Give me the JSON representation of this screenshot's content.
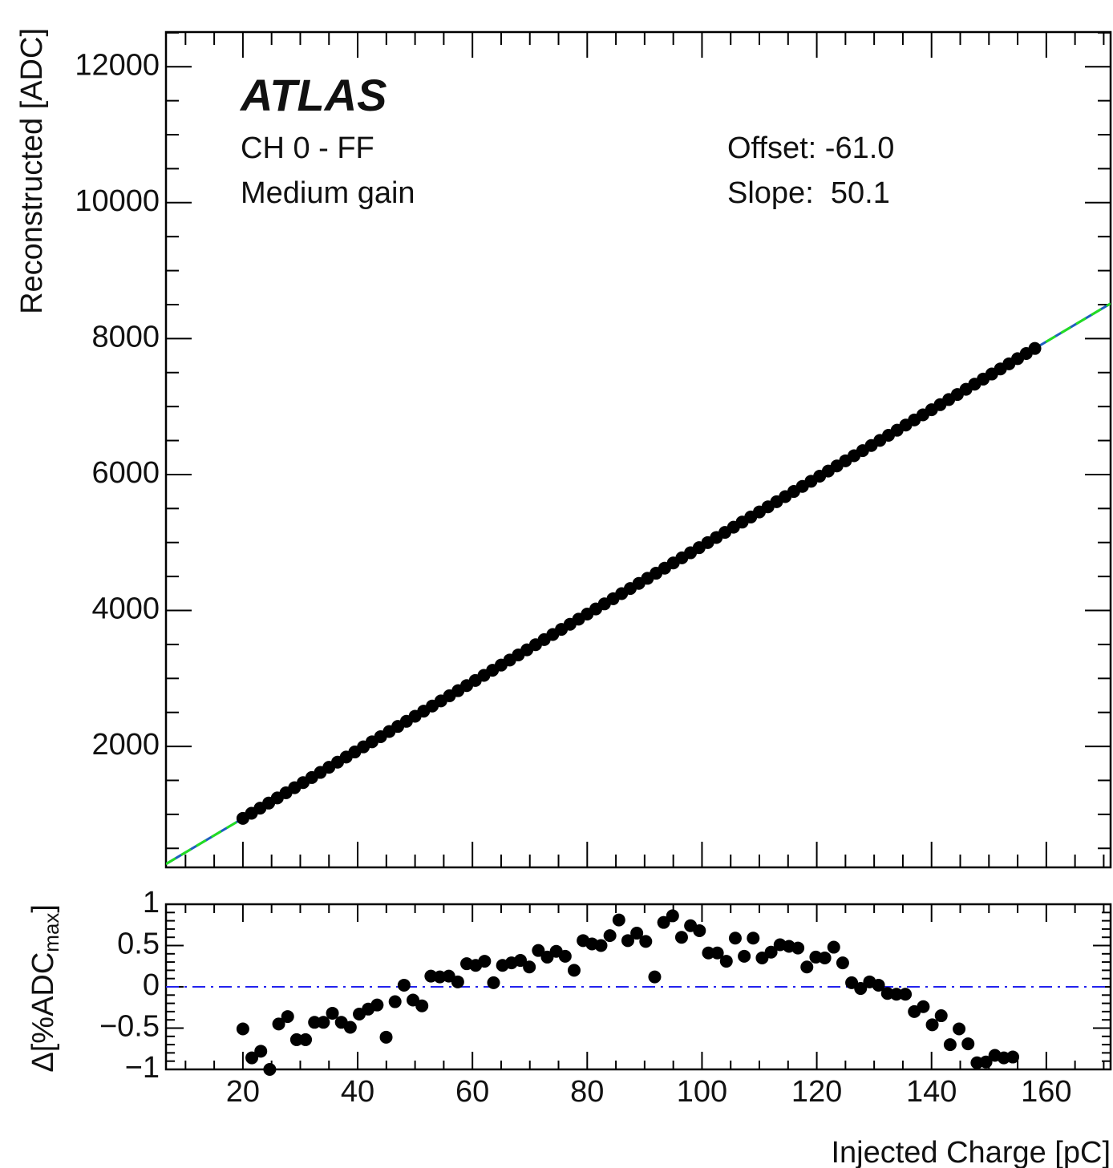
{
  "chart_data": [
    {
      "type": "scatter",
      "title": "ATLAS",
      "annotations": [
        "CH 0 - FF",
        "Medium gain",
        "Offset: -61.0",
        "Slope:  50.1"
      ],
      "ylabel": "Reconstructed [ADC]",
      "color": "#000000",
      "x": [
        20,
        21.5,
        23,
        24.5,
        26,
        27.5,
        29,
        30.5,
        32,
        33.5,
        35,
        36.5,
        38,
        39.5,
        41,
        42.5,
        44,
        45.5,
        47,
        48.5,
        50,
        51.5,
        53,
        54.5,
        56,
        57.5,
        59,
        60.5,
        62,
        63.5,
        65,
        66.5,
        68,
        69.5,
        71,
        72.5,
        74,
        75.5,
        77,
        78.5,
        80,
        81.5,
        83,
        84.5,
        86,
        87.5,
        89,
        90.5,
        92,
        93.5,
        95,
        96.5,
        98,
        99.5,
        101,
        102.5,
        104,
        105.5,
        107,
        108.5,
        110,
        111.5,
        113,
        114.5,
        116,
        117.5,
        119,
        120.5,
        122,
        123.5,
        125,
        126.5,
        128,
        129.5,
        131,
        132.5,
        134,
        135.5,
        137,
        138.5,
        140,
        141.5,
        143,
        144.5,
        146,
        147.5,
        149,
        150.5,
        152,
        153.5,
        155,
        156.5,
        158
      ],
      "values": [
        941,
        1016,
        1091,
        1166,
        1242,
        1317,
        1392,
        1467,
        1542,
        1617,
        1693,
        1768,
        1843,
        1918,
        1993,
        2068,
        2143,
        2219,
        2294,
        2369,
        2444,
        2519,
        2594,
        2669,
        2745,
        2820,
        2895,
        2970,
        3045,
        3120,
        3196,
        3271,
        3346,
        3421,
        3496,
        3571,
        3646,
        3722,
        3797,
        3872,
        3947,
        4022,
        4097,
        4172,
        4248,
        4323,
        4398,
        4473,
        4548,
        4623,
        4699,
        4774,
        4849,
        4924,
        4999,
        5074,
        5149,
        5225,
        5300,
        5375,
        5450,
        5525,
        5600,
        5675,
        5751,
        5826,
        5901,
        5976,
        6051,
        6126,
        6202,
        6277,
        6352,
        6427,
        6502,
        6577,
        6652,
        6728,
        6803,
        6878,
        6953,
        7028,
        7103,
        7178,
        7254,
        7329,
        7404,
        7479,
        7554,
        7629,
        7705,
        7780,
        7855
      ],
      "fit": {
        "offset": -61.0,
        "slope": 50.1,
        "colors": [
          "#1f5fbf",
          "#22dd22"
        ]
      },
      "xlim": [
        6.6,
        171.2
      ],
      "ylim": [
        220,
        12510
      ],
      "yticks": [
        2000,
        4000,
        6000,
        8000,
        10000,
        12000
      ]
    },
    {
      "type": "scatter",
      "ylabel": "Δ[%ADC",
      "ylabel_sub": "max",
      "ylabel_end": "]",
      "xlabel": "Injected Charge [pC]",
      "color": "#000000",
      "hline": 0,
      "hline_color": "#2222ee",
      "x": [
        20,
        21.56,
        23.12,
        24.68,
        26.24,
        27.8,
        29.36,
        30.92,
        32.48,
        34.04,
        35.6,
        37.16,
        38.72,
        40.28,
        41.84,
        43.4,
        44.96,
        46.52,
        48.08,
        49.64,
        51.2,
        52.76,
        54.32,
        55.88,
        57.44,
        59,
        60.56,
        62.12,
        63.68,
        65.24,
        66.8,
        68.36,
        69.92,
        71.48,
        73.04,
        74.6,
        76.16,
        77.72,
        79.28,
        80.84,
        82.4,
        83.96,
        85.52,
        87.08,
        88.64,
        90.2,
        91.76,
        93.32,
        94.88,
        96.44,
        98,
        99.56,
        101.12,
        102.68,
        104.24,
        105.8,
        107.36,
        108.92,
        110.48,
        112.04,
        113.6,
        115.16,
        116.72,
        118.28,
        119.84,
        121.4,
        122.96,
        124.52,
        126.08,
        127.64,
        129.2,
        130.76,
        132.32,
        133.88,
        135.44,
        137,
        138.56,
        140.12,
        141.68,
        143.24,
        144.8,
        146.36,
        147.92,
        149.48,
        151.04,
        152.6,
        154.16
      ],
      "values": [
        -0.51,
        -0.86,
        -0.78,
        -1.0,
        -0.45,
        -0.36,
        -0.64,
        -0.64,
        -0.43,
        -0.43,
        -0.32,
        -0.43,
        -0.49,
        -0.33,
        -0.27,
        -0.22,
        -0.61,
        -0.18,
        0.02,
        -0.16,
        -0.23,
        0.13,
        0.12,
        0.13,
        0.06,
        0.28,
        0.26,
        0.31,
        0.05,
        0.26,
        0.29,
        0.32,
        0.24,
        0.44,
        0.36,
        0.43,
        0.37,
        0.2,
        0.56,
        0.52,
        0.5,
        0.62,
        0.81,
        0.56,
        0.65,
        0.55,
        0.12,
        0.78,
        0.86,
        0.6,
        0.74,
        0.68,
        0.41,
        0.41,
        0.31,
        0.59,
        0.37,
        0.59,
        0.35,
        0.42,
        0.51,
        0.49,
        0.47,
        0.24,
        0.36,
        0.35,
        0.48,
        0.29,
        0.05,
        -0.02,
        0.06,
        0.02,
        -0.08,
        -0.09,
        -0.09,
        -0.3,
        -0.24,
        -0.46,
        -0.35,
        -0.7,
        -0.51,
        -0.69,
        -0.92,
        -0.91,
        -0.83,
        -0.86,
        -0.85
      ],
      "xlim": [
        6.6,
        171.2
      ],
      "ylim": [
        -1,
        1
      ],
      "xticks": [
        20,
        40,
        60,
        80,
        100,
        120,
        140,
        160
      ],
      "yticks": [
        {
          "value": -1,
          "label": "−1"
        },
        {
          "value": -0.5,
          "label": "−0.5"
        },
        0,
        0.5,
        1
      ]
    }
  ]
}
